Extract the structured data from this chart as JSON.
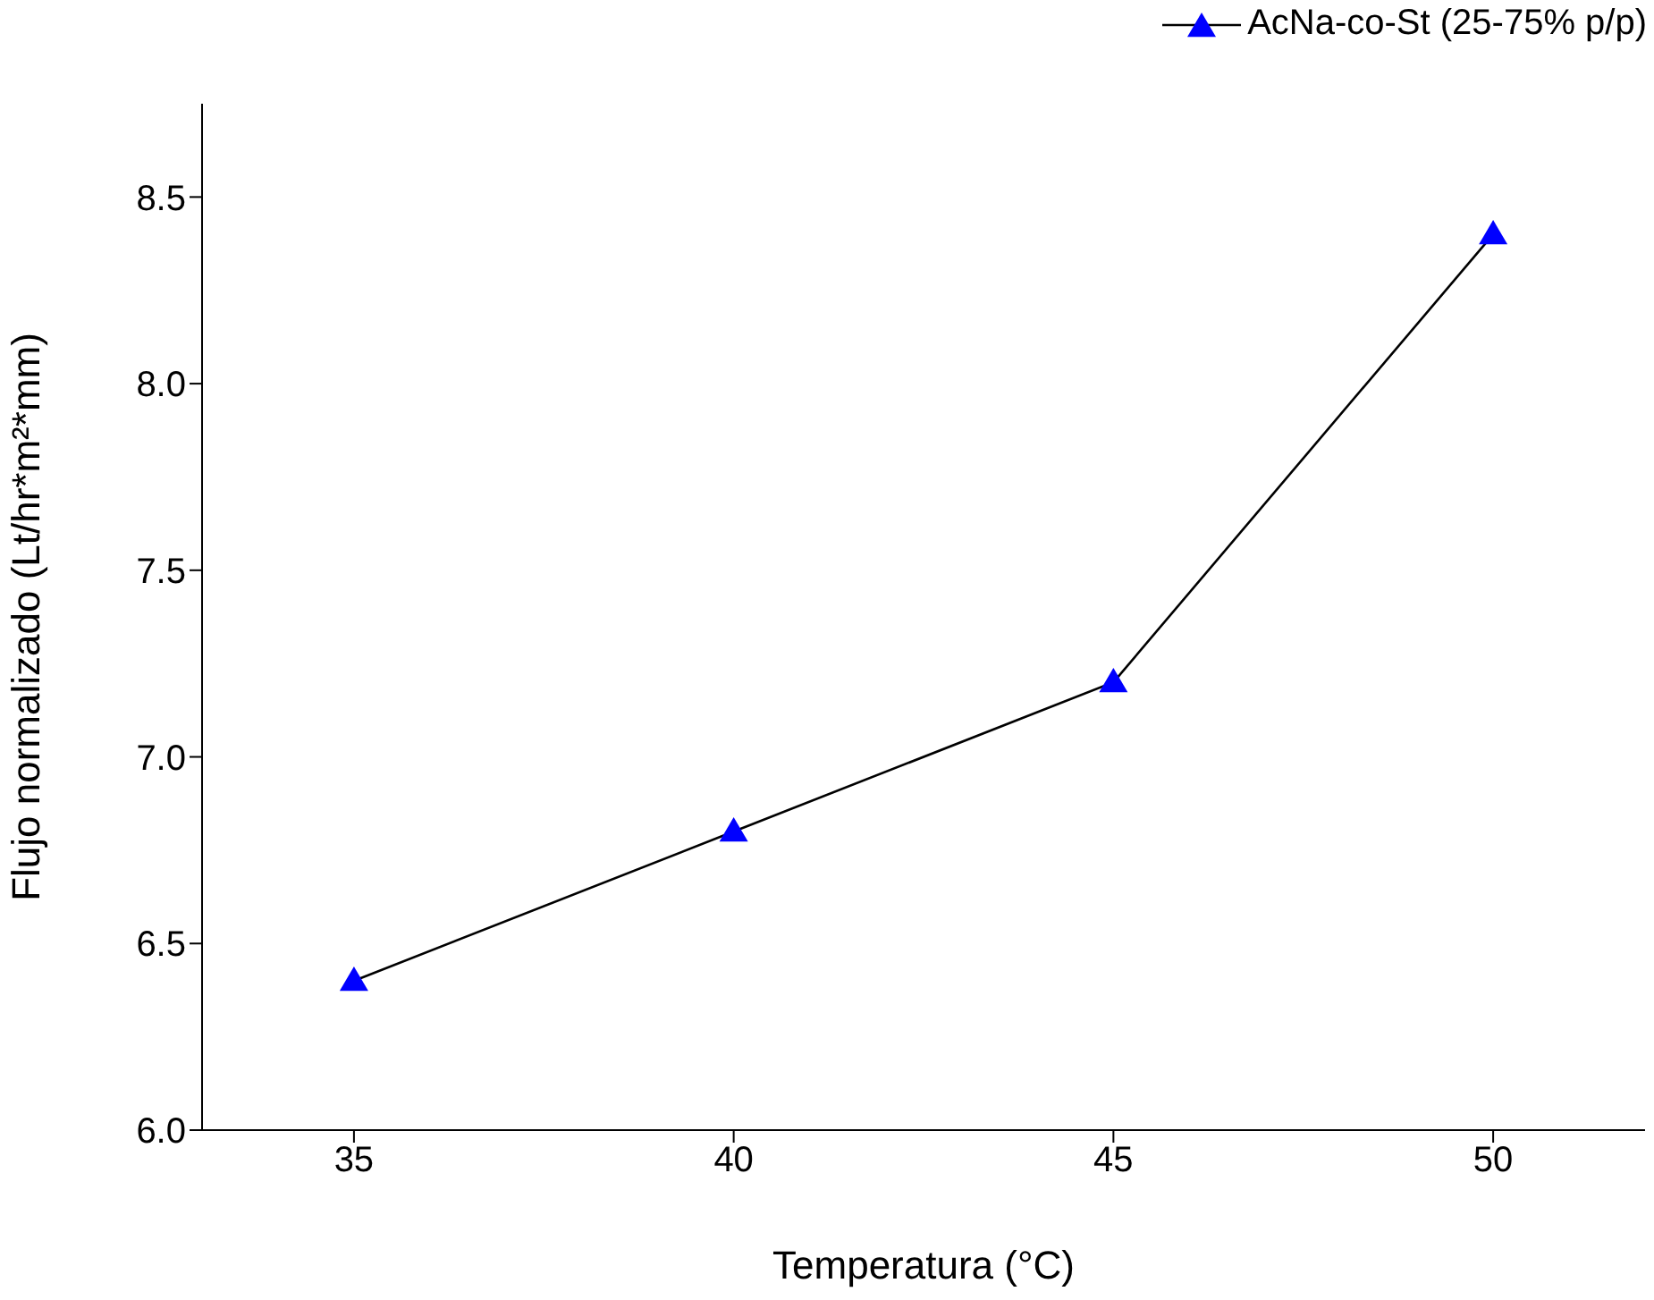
{
  "chart_data": {
    "type": "line",
    "xlabel": "Temperatura (°C)",
    "ylabel": "Flujo normalizado (Lt/hr*m²*mm)",
    "x": [
      35,
      40,
      45,
      50
    ],
    "series": [
      {
        "name": "AcNa-co-St (25-75% p/p)",
        "color": "#0000ff",
        "values": [
          6.4,
          6.8,
          7.2,
          8.4
        ]
      }
    ],
    "xlim": [
      33,
      52
    ],
    "xticks": [
      35,
      40,
      45,
      50
    ],
    "ylim": [
      6.0,
      8.75
    ],
    "yticks": [
      {
        "value": 6.0,
        "label": "6.0"
      },
      {
        "value": 6.5,
        "label": "6.5"
      },
      {
        "value": 7.0,
        "label": "7.0"
      },
      {
        "value": 7.5,
        "label": "7.5"
      },
      {
        "value": 8.0,
        "label": "8.0"
      },
      {
        "value": 8.5,
        "label": "8.5"
      }
    ],
    "grid": false,
    "legend": "top right",
    "marker": "triangle",
    "line_style": "solid"
  }
}
